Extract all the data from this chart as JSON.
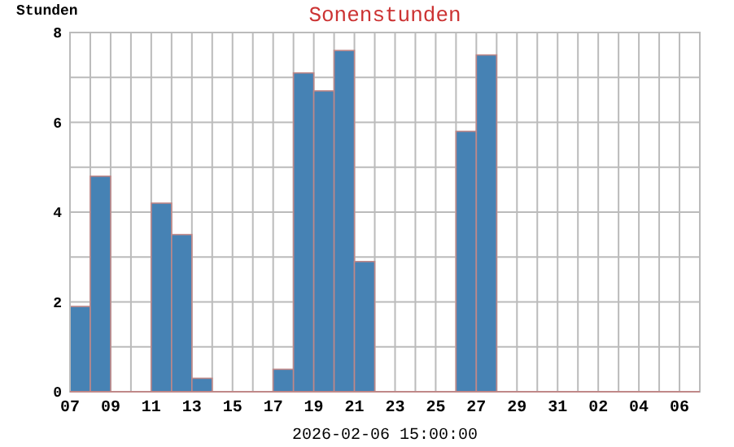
{
  "chart_data": {
    "type": "bar",
    "title": "Sonenstunden",
    "ylabel": "Stunden",
    "annotations": [
      "2026-02-06 15:00:00"
    ],
    "x": [
      "2026-01-07T12:00",
      "2026-01-08T12:00",
      "2026-01-09T12:00",
      "2026-01-10T12:00",
      "2026-01-11T12:00",
      "2026-01-12T12:00",
      "2026-01-13T12:00",
      "2026-01-14T12:00",
      "2026-01-15T12:00",
      "2026-01-16T12:00",
      "2026-01-17T12:00",
      "2026-01-18T12:00",
      "2026-01-19T12:00",
      "2026-01-20T12:00",
      "2026-01-21T12:00",
      "2026-01-22T12:00",
      "2026-01-23T12:00",
      "2026-01-24T12:00",
      "2026-01-25T12:00",
      "2026-01-26T12:00",
      "2026-01-27T12:00",
      "2026-01-28T12:00",
      "2026-01-29T12:00",
      "2026-01-30T12:00",
      "2026-01-31T12:00",
      "2026-02-01T12:00",
      "2026-02-02T12:00",
      "2026-02-03T12:00",
      "2026-02-04T12:00",
      "2026-02-05T12:00",
      "2026-02-06T12:00"
    ],
    "values": [
      1.9,
      4.8,
      0,
      0,
      4.2,
      3.5,
      0.3,
      0,
      0,
      0,
      0.5,
      7.1,
      6.7,
      7.6,
      2.9,
      0,
      0,
      0,
      0,
      5.8,
      7.5,
      0,
      0,
      0,
      0,
      0,
      0,
      0,
      0,
      0,
      0
    ],
    "color": "#4682b4",
    "xlim": [
      "2026-01-07",
      "2026-02-07"
    ],
    "xticks": [
      {
        "value": "2026-01-07",
        "label": "07"
      },
      {
        "value": "2026-01-08",
        "label": null
      },
      {
        "value": "2026-01-09",
        "label": "09"
      },
      {
        "value": "2026-01-10",
        "label": null
      },
      {
        "value": "2026-01-11",
        "label": "11"
      },
      {
        "value": "2026-01-12",
        "label": null
      },
      {
        "value": "2026-01-13",
        "label": "13"
      },
      {
        "value": "2026-01-14",
        "label": null
      },
      {
        "value": "2026-01-15",
        "label": "15"
      },
      {
        "value": "2026-01-16",
        "label": null
      },
      {
        "value": "2026-01-17",
        "label": "17"
      },
      {
        "value": "2026-01-18",
        "label": null
      },
      {
        "value": "2026-01-19",
        "label": "19"
      },
      {
        "value": "2026-01-20",
        "label": null
      },
      {
        "value": "2026-01-21",
        "label": "21"
      },
      {
        "value": "2026-01-22",
        "label": null
      },
      {
        "value": "2026-01-23",
        "label": "23"
      },
      {
        "value": "2026-01-24",
        "label": null
      },
      {
        "value": "2026-01-25",
        "label": "25"
      },
      {
        "value": "2026-01-26",
        "label": null
      },
      {
        "value": "2026-01-27",
        "label": "27"
      },
      {
        "value": "2026-01-28",
        "label": null
      },
      {
        "value": "2026-01-29",
        "label": "29"
      },
      {
        "value": "2026-01-30",
        "label": null
      },
      {
        "value": "2026-01-31",
        "label": "31"
      },
      {
        "value": "2026-02-01",
        "label": null
      },
      {
        "value": "2026-02-02",
        "label": "02"
      },
      {
        "value": "2026-02-03",
        "label": null
      },
      {
        "value": "2026-02-04",
        "label": "04"
      },
      {
        "value": "2026-02-05",
        "label": null
      },
      {
        "value": "2026-02-06",
        "label": "06"
      }
    ],
    "ylim": [
      0,
      8
    ],
    "yticks": [
      0,
      {
        "value": 1,
        "label": null
      },
      2,
      {
        "value": 3,
        "label": null
      },
      4,
      {
        "value": 5,
        "label": null
      },
      6,
      {
        "value": 7,
        "label": null
      },
      8
    ],
    "grid": true
  }
}
